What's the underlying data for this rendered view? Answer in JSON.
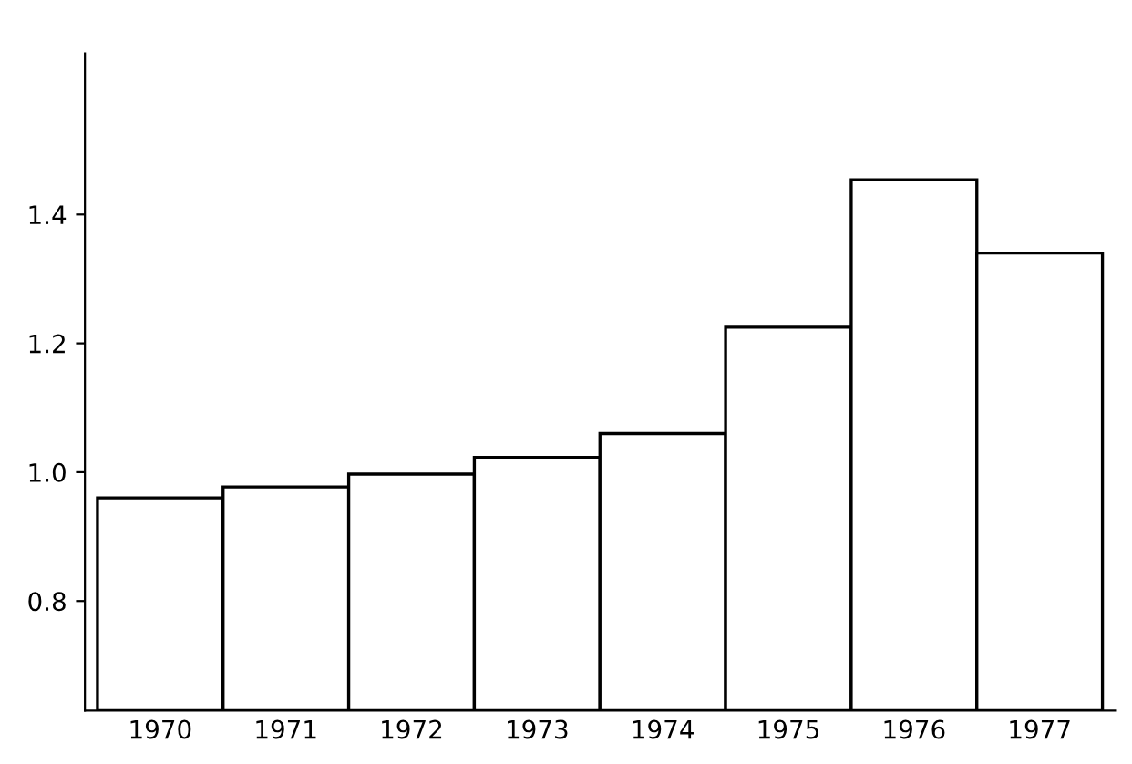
{
  "chart_data": {
    "type": "bar",
    "categories": [
      "1970",
      "1971",
      "1972",
      "1973",
      "1974",
      "1975",
      "1976",
      "1977"
    ],
    "values": [
      0.96,
      0.977,
      0.997,
      1.023,
      1.06,
      1.225,
      1.454,
      1.34
    ],
    "color": "#ffffff",
    "ylim": [
      0.63,
      1.65
    ],
    "yticks": [
      0.8,
      {
        "value": 1.0,
        "label": "1.0"
      },
      1.2,
      1.4
    ],
    "grid": false
  }
}
